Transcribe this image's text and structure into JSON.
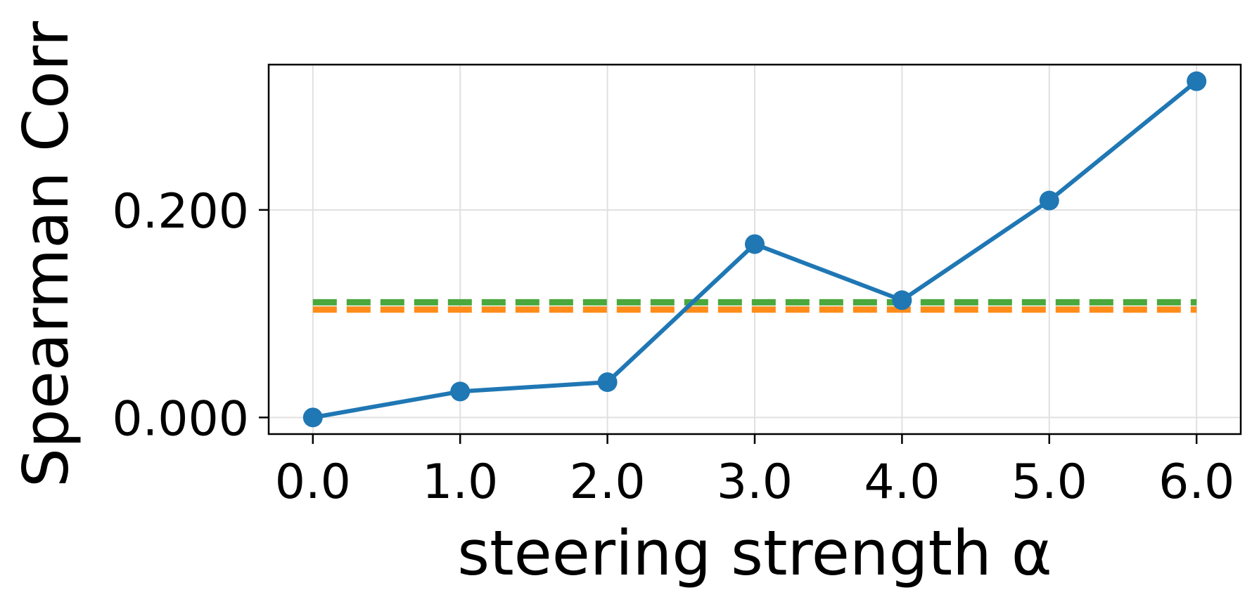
{
  "chart_data": {
    "type": "line",
    "title": "",
    "xlabel": "steering strength α",
    "ylabel": "Spearman Corr",
    "x": [
      0.0,
      1.0,
      2.0,
      3.0,
      4.0,
      5.0,
      6.0
    ],
    "x_tick_labels": [
      "0.0",
      "1.0",
      "2.0",
      "3.0",
      "4.0",
      "5.0",
      "6.0"
    ],
    "xlim": [
      -0.3,
      6.3
    ],
    "ylim": [
      -0.016,
      0.34
    ],
    "y_ticks": [
      0.0,
      0.2
    ],
    "y_tick_labels": [
      "0.000",
      "0.200"
    ],
    "grid": true,
    "series": [
      {
        "values": [
          0.0,
          0.025,
          0.034,
          0.167,
          0.113,
          0.209,
          0.324
        ],
        "color": "#1f77b4",
        "style": "solid",
        "markers": true
      }
    ],
    "reference_lines": [
      {
        "value": 0.111,
        "color": "#4aa83c",
        "style": "dashed"
      },
      {
        "value": 0.104,
        "color": "#ff8c1a",
        "style": "dashed"
      }
    ]
  }
}
